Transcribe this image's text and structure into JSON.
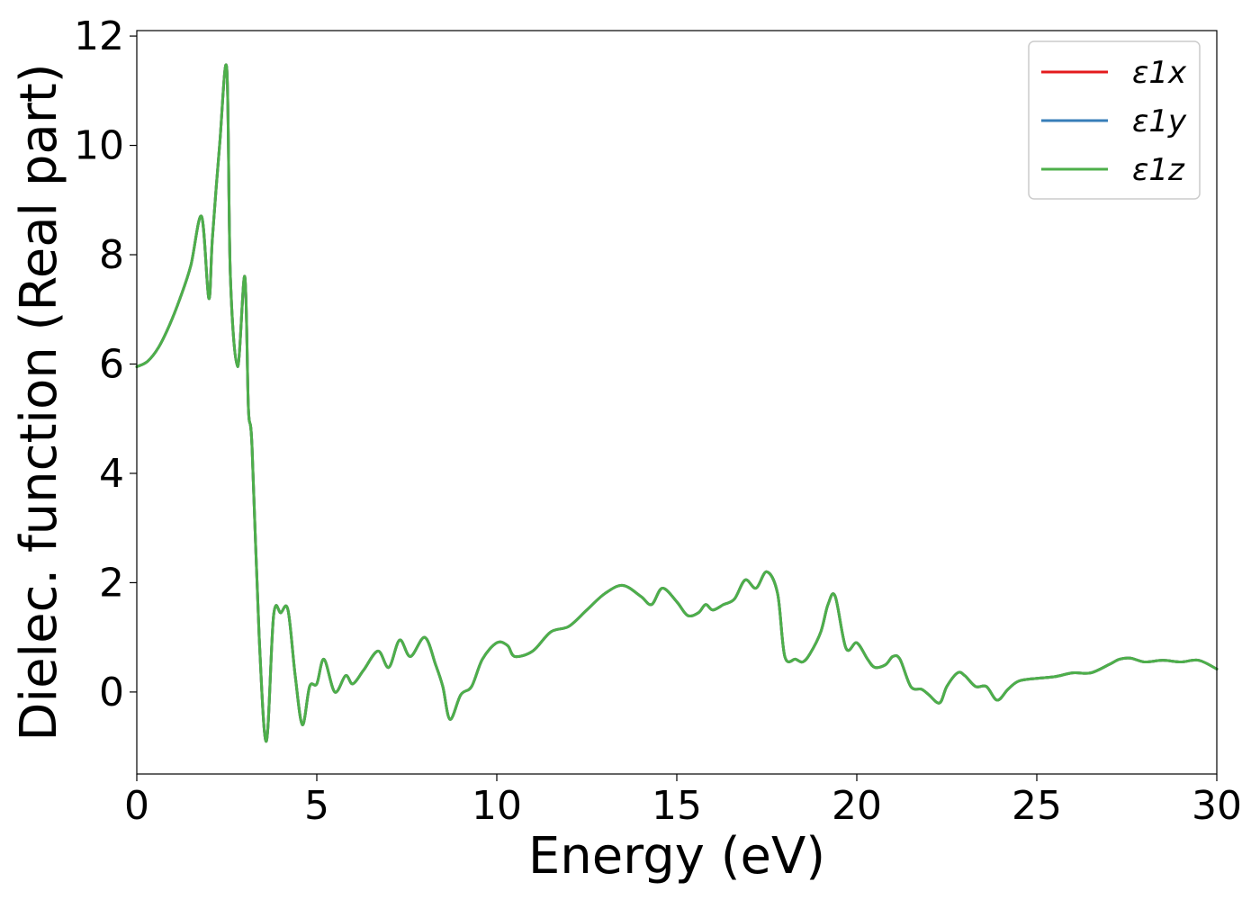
{
  "chart_data": {
    "type": "line",
    "title": "",
    "xlabel": "Energy (eV)",
    "ylabel": "Dielec. function (Real part)",
    "xlim": [
      0,
      30
    ],
    "ylim": [
      -1.5,
      12.1
    ],
    "xticks": [
      0,
      5,
      10,
      15,
      20,
      25,
      30
    ],
    "yticks": [
      0,
      2,
      4,
      6,
      8,
      10,
      12
    ],
    "grid": false,
    "legend_position": "top-right",
    "x": [
      0,
      0.3,
      0.6,
      0.9,
      1.2,
      1.5,
      1.8,
      2.0,
      2.1,
      2.3,
      2.5,
      2.6,
      2.8,
      3.0,
      3.1,
      3.2,
      3.4,
      3.6,
      3.8,
      4.0,
      4.2,
      4.4,
      4.6,
      4.8,
      5.0,
      5.2,
      5.5,
      5.8,
      6.0,
      6.3,
      6.7,
      7.0,
      7.3,
      7.6,
      8.0,
      8.3,
      8.5,
      8.7,
      9.0,
      9.3,
      9.6,
      10.0,
      10.3,
      10.5,
      11.0,
      11.5,
      12.0,
      12.5,
      13.0,
      13.5,
      14.0,
      14.3,
      14.6,
      15.0,
      15.3,
      15.6,
      15.8,
      16.0,
      16.3,
      16.6,
      16.9,
      17.2,
      17.5,
      17.8,
      18.0,
      18.3,
      18.5,
      18.7,
      19.0,
      19.2,
      19.4,
      19.7,
      20.0,
      20.3,
      20.5,
      20.8,
      21.0,
      21.2,
      21.5,
      21.8,
      22.0,
      22.3,
      22.5,
      22.8,
      23.0,
      23.3,
      23.6,
      23.9,
      24.2,
      24.5,
      25.0,
      25.5,
      26.0,
      26.5,
      27.0,
      27.3,
      27.6,
      28.0,
      28.5,
      29.0,
      29.5,
      30.0
    ],
    "series": [
      {
        "name": "ε1x",
        "color": "#e41a1c",
        "values": [
          5.95,
          6.05,
          6.3,
          6.7,
          7.2,
          7.8,
          8.7,
          7.2,
          8.3,
          10.0,
          11.4,
          7.6,
          5.95,
          7.6,
          5.2,
          4.5,
          1.0,
          -0.9,
          1.4,
          1.45,
          1.5,
          0.3,
          -0.6,
          0.1,
          0.15,
          0.6,
          0.0,
          0.3,
          0.15,
          0.4,
          0.75,
          0.45,
          0.95,
          0.65,
          1.0,
          0.5,
          0.1,
          -0.5,
          -0.05,
          0.1,
          0.6,
          0.9,
          0.85,
          0.65,
          0.75,
          1.1,
          1.2,
          1.5,
          1.8,
          1.95,
          1.75,
          1.6,
          1.9,
          1.65,
          1.4,
          1.45,
          1.6,
          1.5,
          1.6,
          1.7,
          2.05,
          1.9,
          2.2,
          1.8,
          0.65,
          0.6,
          0.55,
          0.7,
          1.1,
          1.6,
          1.75,
          0.8,
          0.9,
          0.6,
          0.45,
          0.5,
          0.65,
          0.6,
          0.1,
          0.05,
          -0.05,
          -0.2,
          0.1,
          0.35,
          0.3,
          0.1,
          0.1,
          -0.15,
          0.05,
          0.2,
          0.25,
          0.28,
          0.35,
          0.35,
          0.5,
          0.6,
          0.62,
          0.55,
          0.58,
          0.55,
          0.58,
          0.42
        ]
      },
      {
        "name": "ε1y",
        "color": "#377eb8",
        "values": [
          5.95,
          6.05,
          6.3,
          6.7,
          7.2,
          7.8,
          8.7,
          7.2,
          8.3,
          10.0,
          11.4,
          7.6,
          5.95,
          7.6,
          5.2,
          4.5,
          1.0,
          -0.9,
          1.4,
          1.45,
          1.5,
          0.3,
          -0.6,
          0.1,
          0.15,
          0.6,
          0.0,
          0.3,
          0.15,
          0.4,
          0.75,
          0.45,
          0.95,
          0.65,
          1.0,
          0.5,
          0.1,
          -0.5,
          -0.05,
          0.1,
          0.6,
          0.9,
          0.85,
          0.65,
          0.75,
          1.1,
          1.2,
          1.5,
          1.8,
          1.95,
          1.75,
          1.6,
          1.9,
          1.65,
          1.4,
          1.45,
          1.6,
          1.5,
          1.6,
          1.7,
          2.05,
          1.9,
          2.2,
          1.8,
          0.65,
          0.6,
          0.55,
          0.7,
          1.1,
          1.6,
          1.75,
          0.8,
          0.9,
          0.6,
          0.45,
          0.5,
          0.65,
          0.6,
          0.1,
          0.05,
          -0.05,
          -0.2,
          0.1,
          0.35,
          0.3,
          0.1,
          0.1,
          -0.15,
          0.05,
          0.2,
          0.25,
          0.28,
          0.35,
          0.35,
          0.5,
          0.6,
          0.62,
          0.55,
          0.58,
          0.55,
          0.58,
          0.42
        ]
      },
      {
        "name": "ε1z",
        "color": "#4daf4a",
        "values": [
          5.95,
          6.05,
          6.3,
          6.7,
          7.2,
          7.8,
          8.7,
          7.2,
          8.3,
          10.0,
          11.4,
          7.6,
          5.95,
          7.6,
          5.2,
          4.5,
          1.0,
          -0.9,
          1.4,
          1.45,
          1.5,
          0.3,
          -0.6,
          0.1,
          0.15,
          0.6,
          0.0,
          0.3,
          0.15,
          0.4,
          0.75,
          0.45,
          0.95,
          0.65,
          1.0,
          0.5,
          0.1,
          -0.5,
          -0.05,
          0.1,
          0.6,
          0.9,
          0.85,
          0.65,
          0.75,
          1.1,
          1.2,
          1.5,
          1.8,
          1.95,
          1.75,
          1.6,
          1.9,
          1.65,
          1.4,
          1.45,
          1.6,
          1.5,
          1.6,
          1.7,
          2.05,
          1.9,
          2.2,
          1.8,
          0.65,
          0.6,
          0.55,
          0.7,
          1.1,
          1.6,
          1.75,
          0.8,
          0.9,
          0.6,
          0.45,
          0.5,
          0.65,
          0.6,
          0.1,
          0.05,
          -0.05,
          -0.2,
          0.1,
          0.35,
          0.3,
          0.1,
          0.1,
          -0.15,
          0.05,
          0.2,
          0.25,
          0.28,
          0.35,
          0.35,
          0.5,
          0.6,
          0.62,
          0.55,
          0.58,
          0.55,
          0.58,
          0.42
        ]
      }
    ]
  }
}
